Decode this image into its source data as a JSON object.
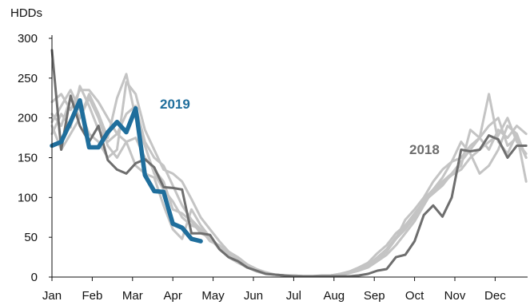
{
  "chart_data": {
    "type": "line",
    "title": "",
    "ylabel": "HDDs",
    "xlabel": "",
    "ylim": [
      0,
      300
    ],
    "yticks": [
      0,
      50,
      100,
      150,
      200,
      250,
      300
    ],
    "grid": false,
    "months": [
      "Jan",
      "Feb",
      "Mar",
      "Apr",
      "May",
      "Jun",
      "Jul",
      "Aug",
      "Sep",
      "Oct",
      "Nov",
      "Dec"
    ],
    "x_unit": "week of year (1-52)",
    "colors": {
      "highlight_2019": "#1f6e9c",
      "highlight_2018": "#6e6e6e",
      "historical": "#c4c4c4",
      "axis": "#111111"
    },
    "series": [
      {
        "name": "2019",
        "labeled": true,
        "color": "#1f6e9c",
        "x": [
          1,
          2,
          3,
          4,
          5,
          6,
          7,
          8,
          9,
          10,
          11,
          12,
          13,
          14,
          15,
          16,
          17
        ],
        "y": [
          165,
          170,
          195,
          222,
          163,
          163,
          182,
          195,
          182,
          212,
          128,
          108,
          107,
          67,
          62,
          48,
          45
        ]
      },
      {
        "name": "2018",
        "labeled": true,
        "color": "#6e6e6e",
        "x": [
          1,
          2,
          3,
          4,
          5,
          6,
          7,
          8,
          9,
          10,
          11,
          12,
          13,
          14,
          15,
          16,
          17,
          18,
          19,
          20,
          21,
          22,
          23,
          24,
          25,
          26,
          27,
          28,
          29,
          30,
          31,
          32,
          33,
          34,
          35,
          36,
          37,
          38,
          39,
          40,
          41,
          42,
          43,
          44,
          45,
          46,
          47,
          48,
          49,
          50,
          51,
          52
        ],
        "y": [
          285,
          160,
          228,
          190,
          170,
          190,
          147,
          135,
          130,
          143,
          148,
          138,
          113,
          112,
          110,
          55,
          55,
          53,
          35,
          25,
          20,
          12,
          8,
          4,
          3,
          2,
          1,
          1,
          1,
          1,
          1,
          1,
          1,
          2,
          4,
          8,
          10,
          25,
          28,
          45,
          78,
          90,
          76,
          100,
          160,
          158,
          160,
          178,
          173,
          150,
          165,
          165
        ]
      },
      {
        "name": "",
        "color": "#c4c4c4",
        "x": [
          1,
          2,
          3,
          4,
          5,
          6,
          7,
          8,
          9,
          10,
          11,
          12,
          13,
          14,
          15,
          16,
          17,
          18,
          19,
          20,
          21,
          22,
          23,
          24,
          25,
          26,
          27,
          28,
          29,
          30,
          31,
          32,
          33,
          34,
          35,
          36,
          37,
          38,
          39,
          40,
          41,
          42,
          43,
          44,
          45,
          46,
          47,
          48,
          49,
          50,
          51,
          52
        ],
        "y": [
          205,
          190,
          225,
          200,
          230,
          205,
          175,
          225,
          255,
          200,
          165,
          130,
          110,
          95,
          75,
          65,
          60,
          45,
          40,
          30,
          22,
          15,
          8,
          5,
          3,
          2,
          2,
          1,
          1,
          1,
          2,
          3,
          5,
          8,
          12,
          20,
          28,
          40,
          55,
          70,
          90,
          110,
          120,
          130,
          145,
          160,
          175,
          160,
          185,
          175,
          190,
          180
        ]
      },
      {
        "name": "",
        "color": "#c4c4c4",
        "x": [
          1,
          2,
          3,
          4,
          5,
          6,
          7,
          8,
          9,
          10,
          11,
          12,
          13,
          14,
          15,
          16,
          17,
          18,
          19,
          20,
          21,
          22,
          23,
          24,
          25,
          26,
          27,
          28,
          29,
          30,
          31,
          32,
          33,
          34,
          35,
          36,
          37,
          38,
          39,
          40,
          41,
          42,
          43,
          44,
          45,
          46,
          47,
          48,
          49,
          50,
          51,
          52
        ],
        "y": [
          220,
          230,
          210,
          235,
          235,
          220,
          200,
          180,
          170,
          175,
          150,
          135,
          120,
          85,
          80,
          70,
          55,
          50,
          35,
          28,
          20,
          14,
          9,
          5,
          3,
          2,
          1,
          1,
          1,
          2,
          2,
          4,
          6,
          10,
          14,
          22,
          32,
          48,
          60,
          75,
          98,
          110,
          125,
          145,
          150,
          165,
          175,
          230,
          170,
          155,
          180,
          150
        ]
      },
      {
        "name": "",
        "color": "#c4c4c4",
        "x": [
          1,
          2,
          3,
          4,
          5,
          6,
          7,
          8,
          9,
          10,
          11,
          12,
          13,
          14,
          15,
          16,
          17,
          18,
          19,
          20,
          21,
          22,
          23,
          24,
          25,
          26,
          27,
          28,
          29,
          30,
          31,
          32,
          33,
          34,
          35,
          36,
          37,
          38,
          39,
          40,
          41,
          42,
          43,
          44,
          45,
          46,
          47,
          48,
          49,
          50,
          51,
          52
        ],
        "y": [
          195,
          215,
          235,
          210,
          180,
          170,
          150,
          160,
          245,
          230,
          185,
          160,
          135,
          130,
          120,
          98,
          75,
          60,
          45,
          32,
          25,
          16,
          10,
          6,
          3,
          2,
          2,
          1,
          1,
          1,
          2,
          3,
          5,
          9,
          15,
          25,
          35,
          48,
          72,
          85,
          100,
          120,
          135,
          145,
          170,
          155,
          130,
          140,
          160,
          190,
          180,
          120
        ]
      },
      {
        "name": "",
        "color": "#c4c4c4",
        "x": [
          1,
          2,
          3,
          4,
          5,
          6,
          7,
          8,
          9,
          10,
          11,
          12,
          13,
          14,
          15,
          16,
          17,
          18,
          19,
          20,
          21,
          22,
          23,
          24,
          25,
          26,
          27,
          28,
          29,
          30,
          31,
          32,
          33,
          34,
          35,
          36,
          37,
          38,
          39,
          40,
          41,
          42,
          43,
          44,
          45,
          46,
          47,
          48,
          49,
          50,
          51,
          52
        ],
        "y": [
          180,
          205,
          188,
          240,
          215,
          185,
          170,
          180,
          205,
          215,
          170,
          150,
          140,
          115,
          90,
          72,
          60,
          48,
          36,
          25,
          18,
          12,
          7,
          4,
          3,
          2,
          1,
          1,
          1,
          1,
          2,
          4,
          7,
          12,
          18,
          30,
          40,
          55,
          65,
          80,
          95,
          105,
          115,
          130,
          140,
          185,
          175,
          190,
          200,
          165,
          175,
          150
        ]
      },
      {
        "name": "",
        "color": "#c4c4c4",
        "x": [
          1,
          2,
          3,
          4,
          5,
          6,
          7,
          8,
          9,
          10,
          11,
          12,
          13,
          14,
          15,
          16,
          17,
          18,
          19,
          20,
          21,
          22,
          23,
          24,
          25,
          26,
          27,
          28,
          29,
          30,
          31,
          32,
          33,
          34,
          35,
          36,
          37,
          38,
          39,
          40,
          41,
          42,
          43,
          44,
          45,
          46,
          47,
          48,
          49,
          50,
          51,
          52
        ],
        "y": [
          190,
          160,
          180,
          200,
          225,
          200,
          165,
          150,
          170,
          140,
          130,
          125,
          90,
          60,
          48,
          85,
          65,
          50,
          38,
          28,
          20,
          13,
          8,
          5,
          3,
          2,
          1,
          1,
          1,
          1,
          2,
          3,
          6,
          10,
          16,
          24,
          35,
          50,
          62,
          78,
          92,
          108,
          118,
          128,
          135,
          150,
          160,
          170,
          178,
          200,
          170,
          155
        ]
      }
    ],
    "annotations": [
      {
        "text": "2019",
        "series": "2019"
      },
      {
        "text": "2018",
        "series": "2018"
      }
    ]
  }
}
